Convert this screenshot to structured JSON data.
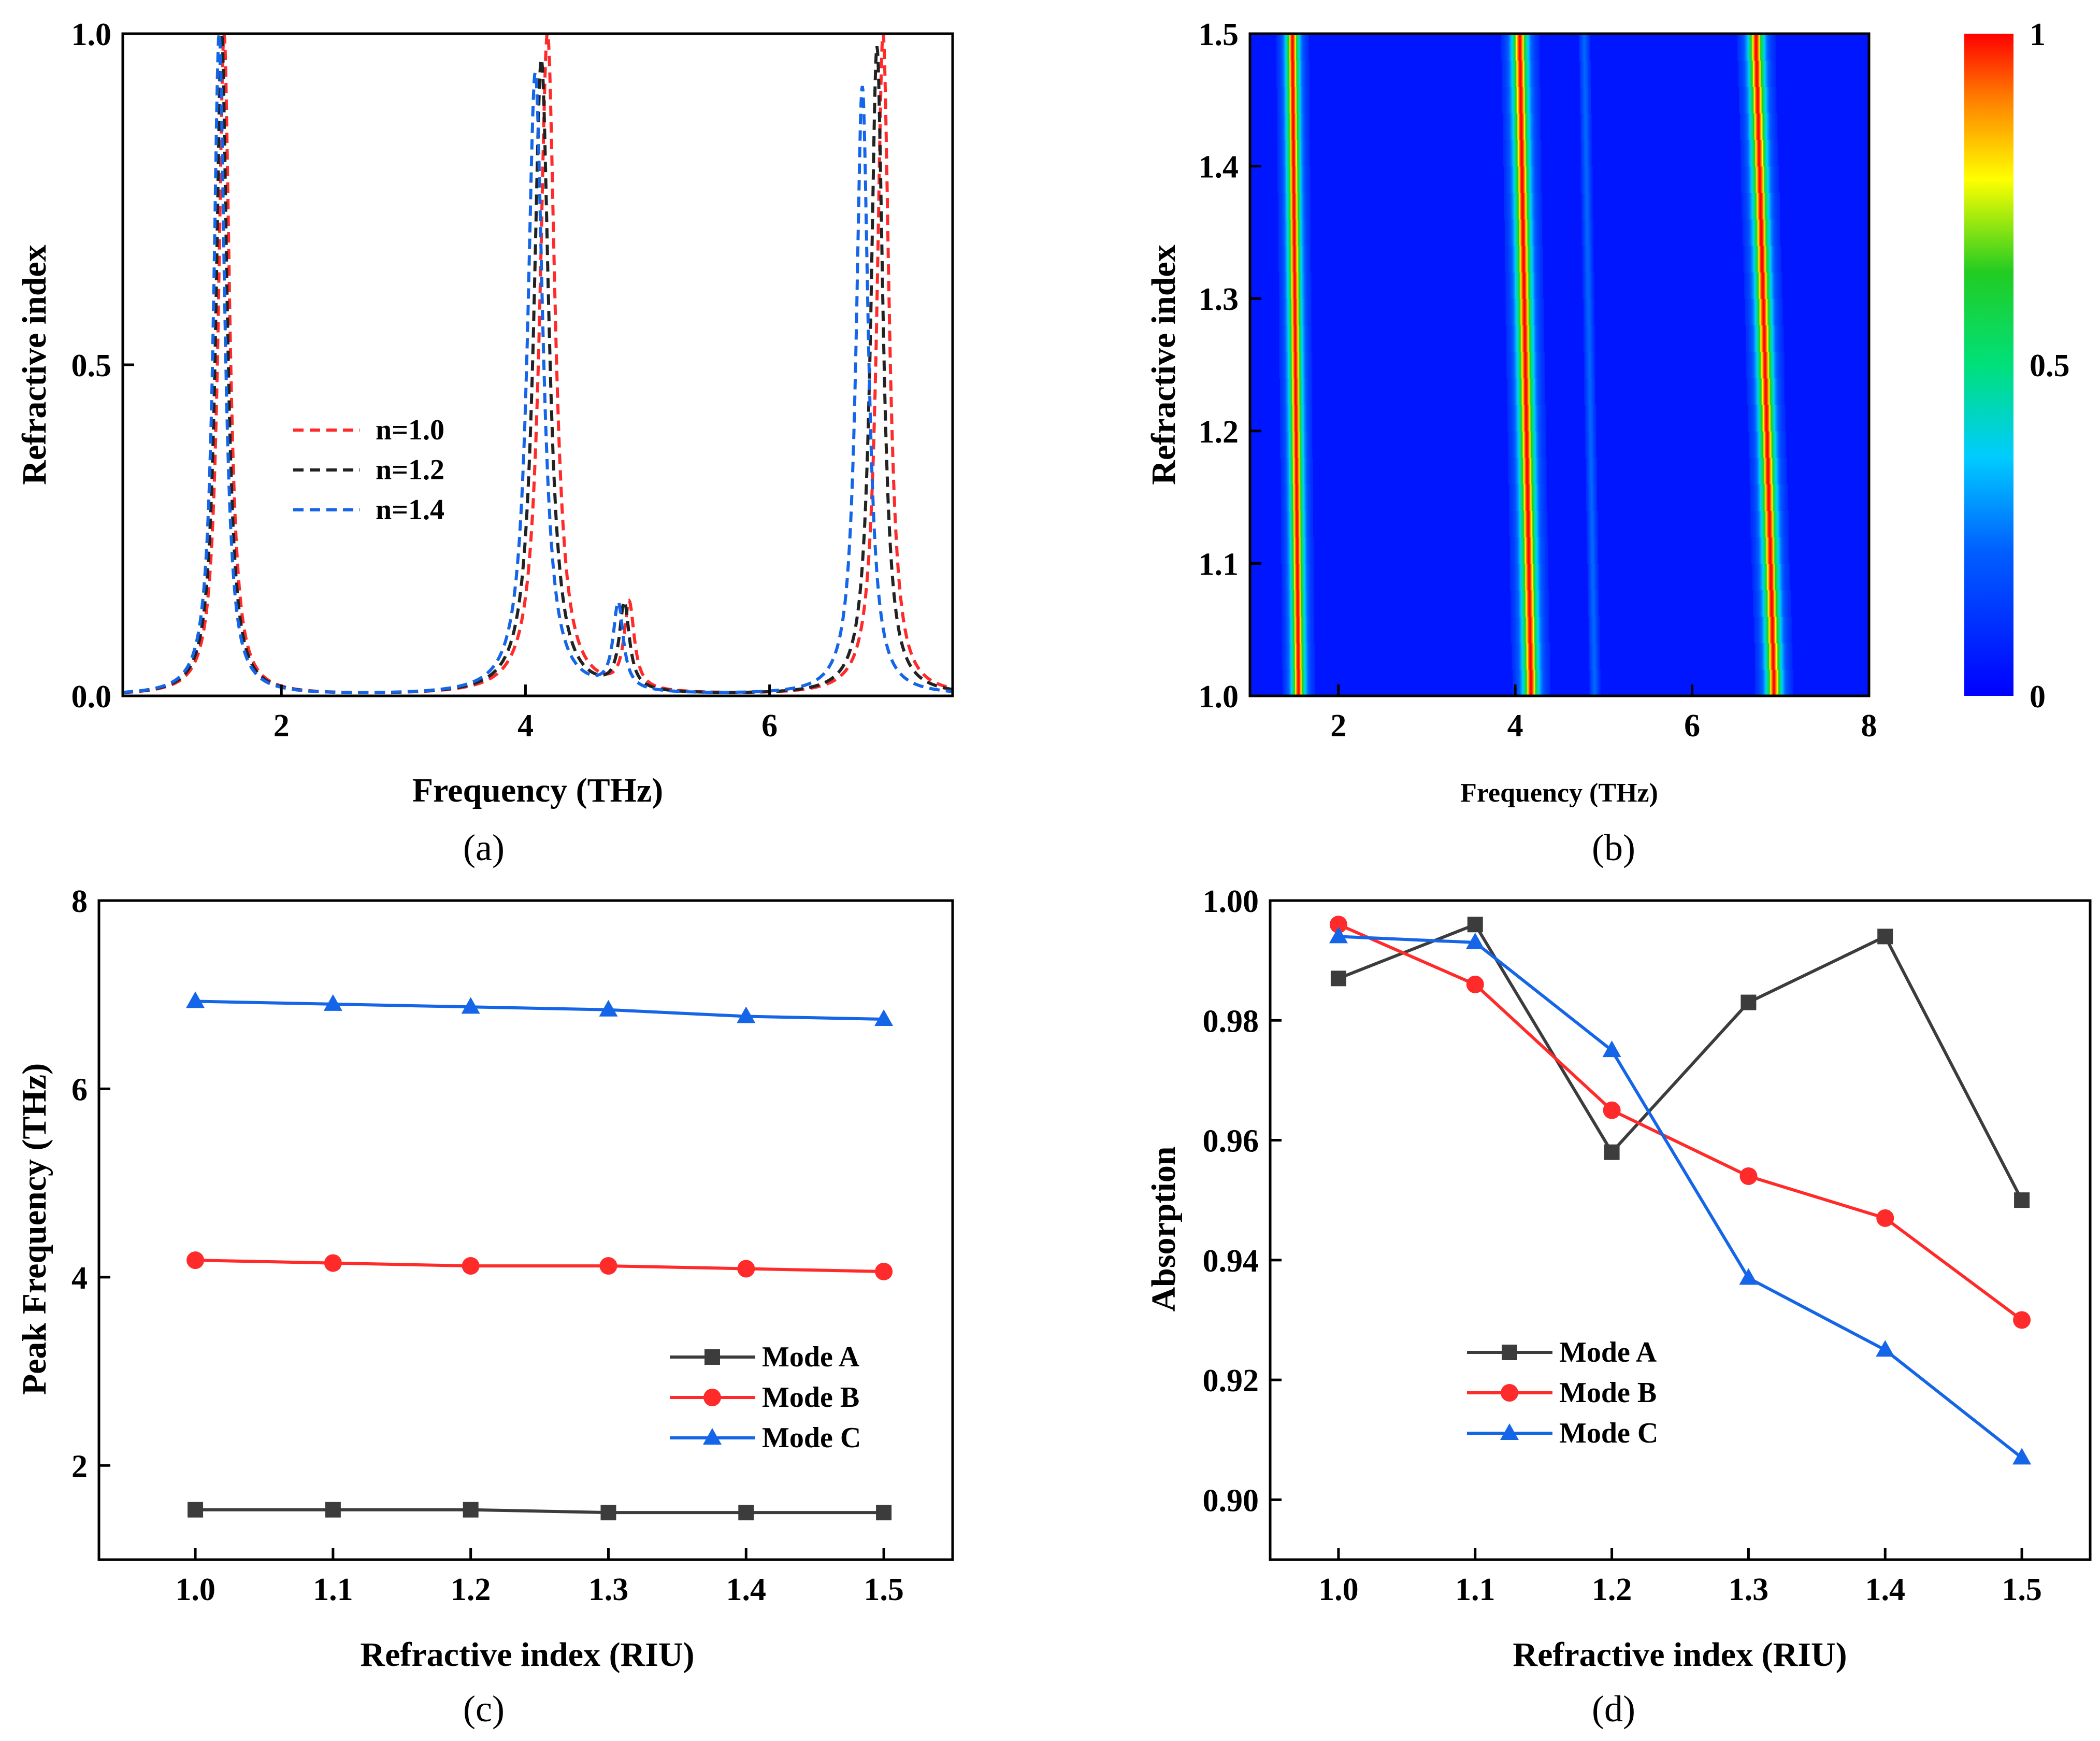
{
  "panels": {
    "a": {
      "label": "(a)"
    },
    "b": {
      "label": "(b)"
    },
    "c": {
      "label": "(c)"
    },
    "d": {
      "label": "(d)"
    }
  },
  "colors": {
    "black": "#222222",
    "red": "#ff2a2a",
    "blue": "#1565e8",
    "gray": "#3c3c3c"
  },
  "chart_data": [
    {
      "id": "a",
      "type": "line",
      "title": "",
      "xlabel": "Frequency (THz)",
      "ylabel": "Refractive index",
      "xlim": [
        0.7,
        7.5
      ],
      "ylim": [
        0,
        1
      ],
      "xticks": [
        2,
        4,
        6
      ],
      "xtick_labels": [
        "2",
        "4",
        "6"
      ],
      "yticks": [
        0,
        0.5,
        1
      ],
      "ytick_labels": [
        "0.0",
        "0.5",
        "1.0"
      ],
      "legend_position": "center-left",
      "line_style": "dashed",
      "series": [
        {
          "name": "n=1.0",
          "color": "#ff2a2a",
          "peaks": [
            [
              1.53,
              1.0,
              0.055
            ],
            [
              4.18,
              1.0,
              0.075
            ],
            [
              4.85,
              0.13,
              0.05
            ],
            [
              6.93,
              1.0,
              0.06
            ]
          ]
        },
        {
          "name": "n=1.2",
          "color": "#222222",
          "peaks": [
            [
              1.51,
              1.0,
              0.055
            ],
            [
              4.13,
              0.96,
              0.075
            ],
            [
              4.81,
              0.13,
              0.05
            ],
            [
              6.88,
              0.98,
              0.06
            ]
          ]
        },
        {
          "name": "n=1.4",
          "color": "#1565e8",
          "peaks": [
            [
              1.49,
              1.0,
              0.055
            ],
            [
              4.08,
              0.94,
              0.075
            ],
            [
              4.76,
              0.13,
              0.05
            ],
            [
              6.76,
              0.92,
              0.06
            ]
          ]
        }
      ]
    },
    {
      "id": "b",
      "type": "heatmap",
      "title": "",
      "xlabel": "Frequency (THz)",
      "ylabel": "Refractive index",
      "xlim": [
        1.0,
        8.0
      ],
      "ylim": [
        1.0,
        1.5
      ],
      "xticks": [
        2,
        4,
        6,
        8
      ],
      "xtick_labels": [
        "2",
        "4",
        "6",
        "8"
      ],
      "yticks": [
        1.0,
        1.1,
        1.2,
        1.3,
        1.4,
        1.5
      ],
      "ytick_labels": [
        "1.0",
        "1.1",
        "1.2",
        "1.3",
        "1.4",
        "1.5"
      ],
      "colorbar": {
        "min": 0,
        "max": 1,
        "tick_labels": [
          "0",
          "0.5",
          "1"
        ],
        "ticks": [
          0,
          0.5,
          1
        ]
      },
      "bands": [
        {
          "f_at_n1": 1.55,
          "f_at_n15": 1.48,
          "amplitude": 1.0,
          "width": 0.06
        },
        {
          "f_at_n1": 4.18,
          "f_at_n15": 4.05,
          "amplitude": 1.0,
          "width": 0.07
        },
        {
          "f_at_n1": 4.9,
          "f_at_n15": 4.78,
          "amplitude": 0.22,
          "width": 0.05
        },
        {
          "f_at_n1": 6.93,
          "f_at_n15": 6.72,
          "amplitude": 1.0,
          "width": 0.07
        }
      ]
    },
    {
      "id": "c",
      "type": "line",
      "title": "",
      "xlabel": "Refractive index (RIU)",
      "ylabel": "Peak Frequency (THz)",
      "xlim": [
        0.93,
        1.55
      ],
      "ylim": [
        1.0,
        8.0
      ],
      "xticks": [
        1.0,
        1.1,
        1.2,
        1.3,
        1.4,
        1.5
      ],
      "xtick_labels": [
        "1.0",
        "1.1",
        "1.2",
        "1.3",
        "1.4",
        "1.5"
      ],
      "yticks": [
        2,
        4,
        6,
        8
      ],
      "ytick_labels": [
        "2",
        "4",
        "6",
        "8"
      ],
      "legend_position": "lower-right",
      "x": [
        1.0,
        1.1,
        1.2,
        1.3,
        1.4,
        1.5
      ],
      "series": [
        {
          "name": "Mode A",
          "color": "#3c3c3c",
          "marker": "square",
          "values": [
            1.53,
            1.53,
            1.53,
            1.5,
            1.5,
            1.5
          ]
        },
        {
          "name": "Mode B",
          "color": "#ff2a2a",
          "marker": "circle",
          "values": [
            4.18,
            4.15,
            4.12,
            4.12,
            4.09,
            4.06
          ]
        },
        {
          "name": "Mode C",
          "color": "#1565e8",
          "marker": "triangle",
          "values": [
            6.93,
            6.9,
            6.87,
            6.84,
            6.77,
            6.74
          ]
        }
      ]
    },
    {
      "id": "d",
      "type": "line",
      "title": "",
      "xlabel": "Refractive index (RIU)",
      "ylabel": "Absorption",
      "xlim": [
        0.95,
        1.55
      ],
      "ylim": [
        0.89,
        1.0
      ],
      "xticks": [
        1.0,
        1.1,
        1.2,
        1.3,
        1.4,
        1.5
      ],
      "xtick_labels": [
        "1.0",
        "1.1",
        "1.2",
        "1.3",
        "1.4",
        "1.5"
      ],
      "yticks": [
        0.9,
        0.92,
        0.94,
        0.96,
        0.98,
        1.0
      ],
      "ytick_labels": [
        "0.90",
        "0.92",
        "0.94",
        "0.96",
        "0.98",
        "1.00"
      ],
      "legend_position": "lower-left",
      "x": [
        1.0,
        1.1,
        1.2,
        1.3,
        1.4,
        1.5
      ],
      "series": [
        {
          "name": "Mode A",
          "color": "#3c3c3c",
          "marker": "square",
          "values": [
            0.987,
            0.996,
            0.958,
            0.983,
            0.994,
            0.95
          ]
        },
        {
          "name": "Mode B",
          "color": "#ff2a2a",
          "marker": "circle",
          "values": [
            0.996,
            0.986,
            0.965,
            0.954,
            0.947,
            0.93
          ]
        },
        {
          "name": "Mode C",
          "color": "#1565e8",
          "marker": "triangle",
          "values": [
            0.994,
            0.993,
            0.975,
            0.937,
            0.925,
            0.907
          ]
        }
      ]
    }
  ]
}
